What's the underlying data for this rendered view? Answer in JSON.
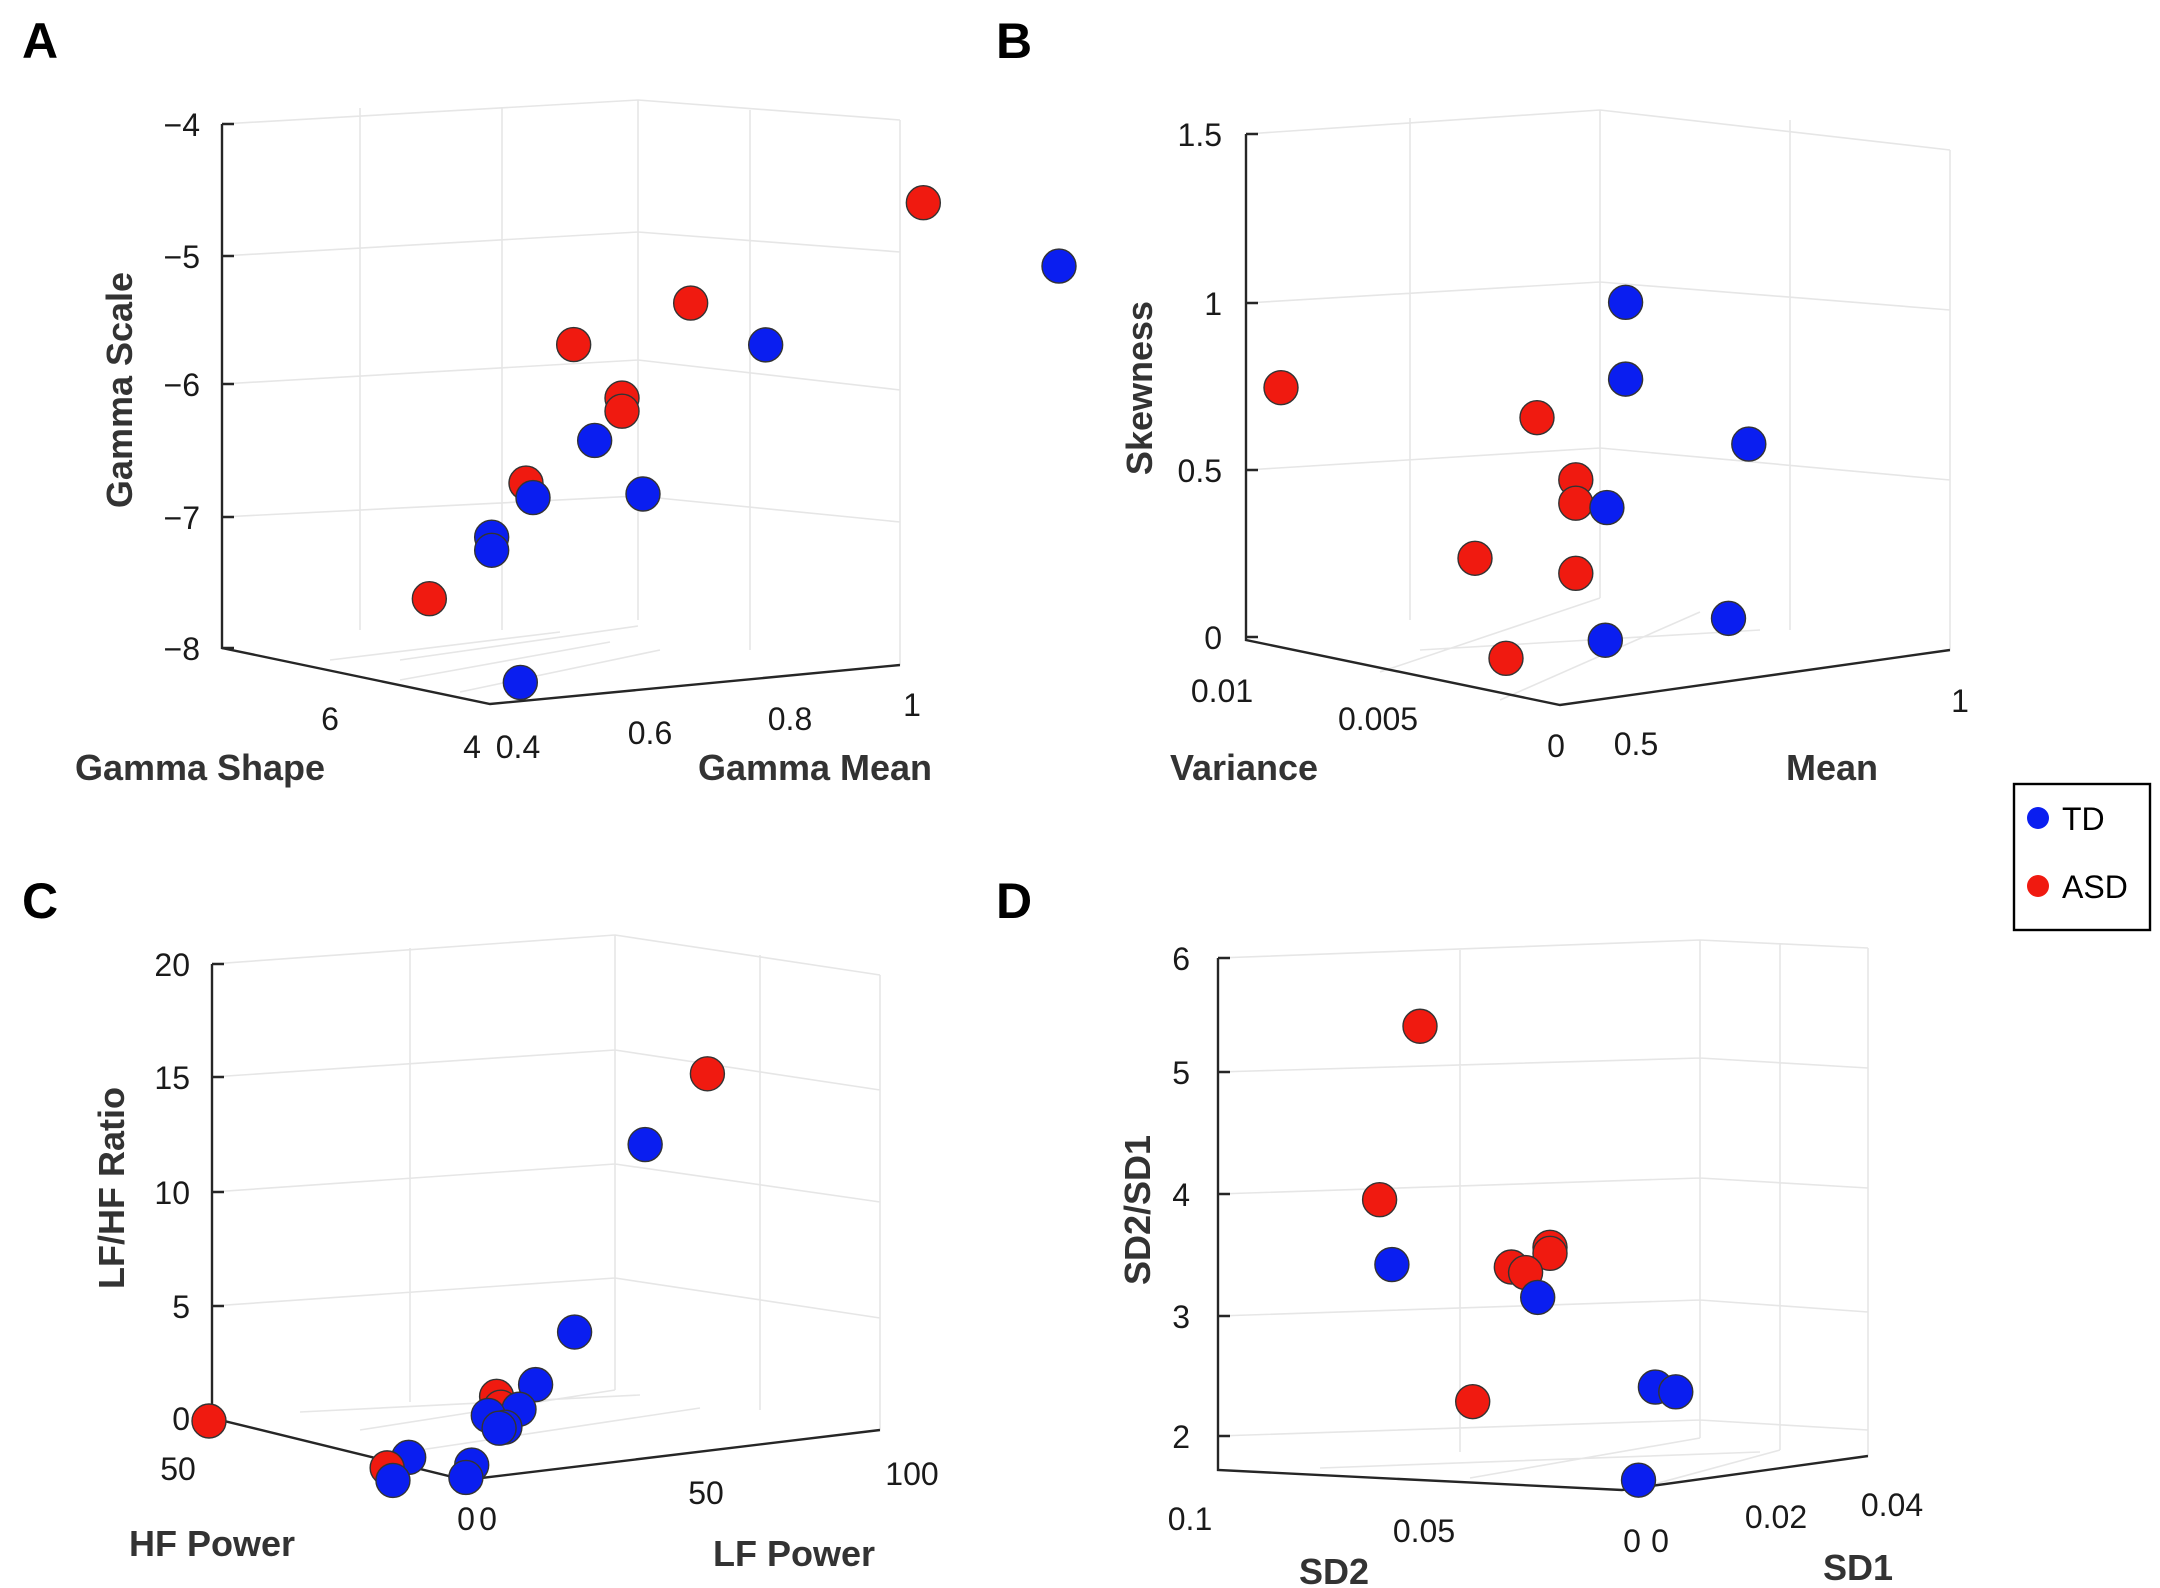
{
  "legend": {
    "entries": [
      {
        "label": "TD",
        "color": "#0a1ef0"
      },
      {
        "label": "ASD",
        "color": "#f01a10"
      }
    ]
  },
  "chart_data": [
    {
      "panel": "A",
      "type": "scatter",
      "projection": "3d",
      "xlabel": "Gamma Shape",
      "ylabel": "Gamma Mean",
      "zlabel": "Gamma Scale",
      "x_ticks": [
        "6",
        "4"
      ],
      "y_ticks": [
        "0.4",
        "0.6",
        "0.8",
        "1"
      ],
      "z_ticks": [
        "−4",
        "−5",
        "−6",
        "−7",
        "−8"
      ],
      "zlim": [
        -8,
        -4
      ],
      "series": [
        {
          "name": "TD",
          "color": "#0a1ef0",
          "points": [
            {
              "x": 4.8,
              "y": 0.85,
              "z": -5.3
            },
            {
              "x": 4.5,
              "y": 0.62,
              "z": -5.6
            },
            {
              "x": 4.6,
              "y": 0.5,
              "z": -6.2
            },
            {
              "x": 4.7,
              "y": 0.46,
              "z": -6.6
            },
            {
              "x": 4.3,
              "y": 0.52,
              "z": -6.6
            },
            {
              "x": 4.9,
              "y": 0.44,
              "z": -6.9
            },
            {
              "x": 4.9,
              "y": 0.44,
              "z": -7.0
            },
            {
              "x": 4.1,
              "y": 0.42,
              "z": -7.9
            }
          ]
        },
        {
          "name": "ASD",
          "color": "#f01a10",
          "points": [
            {
              "x": 4.2,
              "y": 0.72,
              "z": -4.6
            },
            {
              "x": 4.4,
              "y": 0.56,
              "z": -5.2
            },
            {
              "x": 4.9,
              "y": 0.5,
              "z": -5.5
            },
            {
              "x": 4.6,
              "y": 0.52,
              "z": -5.9
            },
            {
              "x": 4.6,
              "y": 0.52,
              "z": -6.0
            },
            {
              "x": 4.8,
              "y": 0.46,
              "z": -6.5
            },
            {
              "x": 5.4,
              "y": 0.42,
              "z": -7.4
            }
          ]
        }
      ]
    },
    {
      "panel": "B",
      "type": "scatter",
      "projection": "3d",
      "xlabel": "Variance",
      "ylabel": "Mean",
      "zlabel": "Skewness",
      "x_ticks": [
        "0.01",
        "0.005",
        "0"
      ],
      "y_ticks": [
        "0.5",
        "1"
      ],
      "z_ticks": [
        "1.5",
        "1",
        "0.5",
        "0"
      ],
      "zlim": [
        0,
        1.5
      ],
      "series": [
        {
          "name": "TD",
          "color": "#0a1ef0",
          "points": [
            {
              "x": 0.0004,
              "y": 0.6,
              "z": 1.15
            },
            {
              "x": 0.0004,
              "y": 0.6,
              "z": 0.92
            },
            {
              "x": 0.0002,
              "y": 0.75,
              "z": 0.68
            },
            {
              "x": 0.0005,
              "y": 0.58,
              "z": 0.54
            },
            {
              "x": 0.0003,
              "y": 0.57,
              "z": 0.15
            },
            {
              "x": 0.0001,
              "y": 0.72,
              "z": 0.17
            }
          ]
        },
        {
          "name": "ASD",
          "color": "#f01a10",
          "points": [
            {
              "x": 0.009,
              "y": 0.5,
              "z": 0.76
            },
            {
              "x": 0.002,
              "y": 0.55,
              "z": 0.79
            },
            {
              "x": 0.001,
              "y": 0.56,
              "z": 0.62
            },
            {
              "x": 0.001,
              "y": 0.56,
              "z": 0.55
            },
            {
              "x": 0.004,
              "y": 0.55,
              "z": 0.33
            },
            {
              "x": 0.001,
              "y": 0.56,
              "z": 0.34
            },
            {
              "x": 0.003,
              "y": 0.55,
              "z": 0.05
            }
          ]
        }
      ]
    },
    {
      "panel": "C",
      "type": "scatter",
      "projection": "3d",
      "xlabel": "HF Power",
      "ylabel": "LF Power",
      "zlabel": "LF/HF Ratio",
      "x_ticks": [
        "50",
        "0"
      ],
      "y_ticks": [
        "0",
        "50",
        "100"
      ],
      "z_ticks": [
        "20",
        "15",
        "10",
        "5",
        "0"
      ],
      "zlim": [
        0,
        20
      ],
      "series": [
        {
          "name": "TD",
          "color": "#0a1ef0",
          "points": [
            {
              "x": 2,
              "y": 45,
              "z": 13.5
            },
            {
              "x": 2,
              "y": 28,
              "z": 5.6
            },
            {
              "x": 3,
              "y": 20,
              "z": 3.4
            },
            {
              "x": 3,
              "y": 16,
              "z": 2.4
            },
            {
              "x": 4,
              "y": 10,
              "z": 2.2
            },
            {
              "x": 4,
              "y": 14,
              "z": 1.6
            },
            {
              "x": 5,
              "y": 14,
              "z": 1.5
            },
            {
              "x": 4,
              "y": 6,
              "z": 0.1
            },
            {
              "x": 5,
              "y": 6,
              "z": -0.5
            },
            {
              "x": 12,
              "y": 2,
              "z": 0.1
            },
            {
              "x": 14,
              "y": 1,
              "z": -1.0
            }
          ]
        },
        {
          "name": "ASD",
          "color": "#f01a10",
          "points": [
            {
              "x": 2,
              "y": 60,
              "z": 16.3
            },
            {
              "x": 4,
              "y": 12,
              "z": 3.0
            },
            {
              "x": 4,
              "y": 13,
              "z": 2.5
            },
            {
              "x": 15,
              "y": 1,
              "z": -0.5
            },
            {
              "x": 45,
              "y": 0,
              "z": 0
            }
          ]
        }
      ]
    },
    {
      "panel": "D",
      "type": "scatter",
      "projection": "3d",
      "xlabel": "SD2",
      "ylabel": "SD1",
      "zlabel": "SD2/SD1",
      "x_ticks": [
        "0.1",
        "0.05",
        "0"
      ],
      "y_ticks": [
        "0",
        "0.02",
        "0.04"
      ],
      "z_ticks": [
        "6",
        "5",
        "4",
        "3",
        "2"
      ],
      "zlim": [
        1.7,
        6
      ],
      "series": [
        {
          "name": "TD",
          "color": "#0a1ef0",
          "points": [
            {
              "x": 0.06,
              "y": 0.002,
              "z": 3.45
            },
            {
              "x": 0.03,
              "y": 0.006,
              "z": 3.2
            },
            {
              "x": 0.01,
              "y": 0.012,
              "z": 2.45
            },
            {
              "x": 0.008,
              "y": 0.014,
              "z": 2.4
            },
            {
              "x": 0.002,
              "y": 0.004,
              "z": 1.75
            }
          ]
        },
        {
          "name": "ASD",
          "color": "#f01a10",
          "points": [
            {
              "x": 0.05,
              "y": 0.0,
              "z": 5.45
            },
            {
              "x": 0.06,
              "y": 0.0,
              "z": 4.0
            },
            {
              "x": 0.035,
              "y": 0.005,
              "z": 3.45
            },
            {
              "x": 0.033,
              "y": 0.006,
              "z": 3.4
            },
            {
              "x": 0.03,
              "y": 0.008,
              "z": 3.55
            },
            {
              "x": 0.03,
              "y": 0.008,
              "z": 3.6
            },
            {
              "x": 0.04,
              "y": 0.002,
              "z": 2.35
            }
          ]
        }
      ]
    }
  ]
}
